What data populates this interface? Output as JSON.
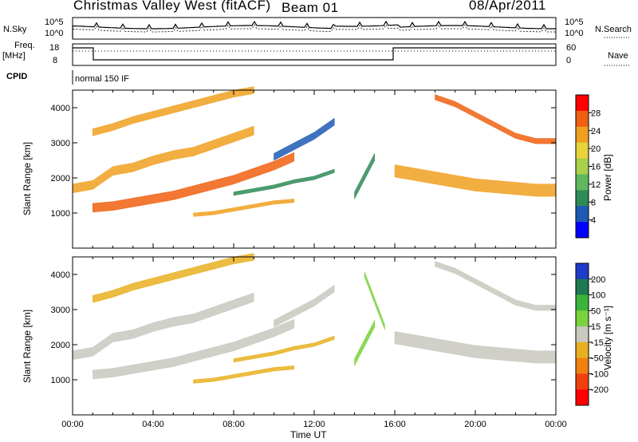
{
  "header": {
    "title": "Christmas Valley West (fitACF)",
    "beam": "Beam 01",
    "date": "08/Apr/2011"
  },
  "panels": {
    "nsky_label": "N.Sky",
    "nsearch_label": "N.Search",
    "noise_left_ticks": [
      "10^5",
      "10^0"
    ],
    "noise_right_ticks": [
      "10^5",
      "10^0"
    ],
    "freq_label_1": "Freq.",
    "freq_label_2": "[MHz]",
    "freq_ticks": [
      "18",
      "8"
    ],
    "nave_label": "Nave",
    "nave_ticks": [
      "60",
      "0"
    ],
    "cpid_label": "CPID",
    "cpid_value": "normal 150 IF"
  },
  "colors": {
    "power_scale": [
      "#0000ff",
      "#1e5ab4",
      "#2e8b57",
      "#5fb85f",
      "#a8d04a",
      "#e8d43a",
      "#f0a020",
      "#f06010",
      "#ff0000"
    ],
    "velocity_scale": [
      "#1e3cc8",
      "#1e7850",
      "#3cb43c",
      "#7ad23c",
      "#c8c8c0",
      "#e8b020",
      "#f08010",
      "#f04010",
      "#ff0000"
    ]
  },
  "chart_data": [
    {
      "type": "heatmap",
      "title": "Power",
      "ylabel": "Slant Range [km]",
      "xlabel": "Time UT",
      "x_ticks": [
        "00:00",
        "04:00",
        "08:00",
        "12:00",
        "16:00",
        "20:00",
        "00:00"
      ],
      "y_ticks": [
        "1000",
        "2000",
        "3000",
        "4000"
      ],
      "ylim": [
        0,
        4500
      ],
      "xlim_hours": [
        0,
        24
      ],
      "colorbar_label": "Power [dB]",
      "colorbar_ticks": [
        "28",
        "24",
        "20",
        "16",
        "12",
        "8",
        "4"
      ],
      "colorbar_range": [
        0,
        32
      ],
      "bands": [
        {
          "t": [
            0,
            1,
            2,
            3,
            4,
            5,
            6,
            7,
            8,
            9
          ],
          "r": [
            1700,
            1800,
            2200,
            2300,
            2500,
            2650,
            2750,
            2950,
            3150,
            3350
          ],
          "width": 250,
          "value": 24
        },
        {
          "t": [
            1,
            2,
            3,
            4,
            5,
            6,
            7,
            8,
            9,
            10,
            11
          ],
          "r": [
            1150,
            1200,
            1300,
            1400,
            1500,
            1650,
            1800,
            1950,
            2150,
            2350,
            2600
          ],
          "width": 250,
          "value": 26
        },
        {
          "t": [
            1,
            2,
            3,
            4,
            5,
            6,
            7,
            8,
            9
          ],
          "r": [
            3300,
            3450,
            3650,
            3800,
            3950,
            4100,
            4250,
            4400,
            4500
          ],
          "width": 200,
          "value": 22
        },
        {
          "t": [
            6,
            7,
            8,
            9,
            10,
            11
          ],
          "r": [
            950,
            1000,
            1100,
            1200,
            1300,
            1350
          ],
          "width": 100,
          "value": 24
        },
        {
          "t": [
            8,
            9,
            10,
            11,
            12,
            13
          ],
          "r": [
            1550,
            1650,
            1750,
            1900,
            2000,
            2200
          ],
          "width": 100,
          "value": 10
        },
        {
          "t": [
            10,
            11,
            12,
            13
          ],
          "r": [
            2600,
            2900,
            3200,
            3600
          ],
          "width": 200,
          "value": 6
        },
        {
          "t": [
            14,
            15
          ],
          "r": [
            1500,
            2600
          ],
          "width": 200,
          "value": 10
        },
        {
          "t": [
            16,
            17,
            18,
            19,
            20,
            21,
            22,
            23,
            24
          ],
          "r": [
            2200,
            2100,
            2000,
            1900,
            1800,
            1750,
            1700,
            1650,
            1650
          ],
          "width": 350,
          "value": 24
        },
        {
          "t": [
            18,
            19,
            20,
            21,
            22,
            23,
            24
          ],
          "r": [
            4300,
            4100,
            3800,
            3500,
            3200,
            3050,
            3050
          ],
          "width": 150,
          "value": 26
        }
      ]
    },
    {
      "type": "heatmap",
      "title": "Velocity",
      "ylabel": "Slant Range [km]",
      "xlabel": "Time UT",
      "x_ticks": [
        "00:00",
        "04:00",
        "08:00",
        "12:00",
        "16:00",
        "20:00",
        "00:00"
      ],
      "y_ticks": [
        "1000",
        "2000",
        "3000",
        "4000"
      ],
      "ylim": [
        0,
        4500
      ],
      "xlim_hours": [
        0,
        24
      ],
      "colorbar_label": "Velocity [m s⁻¹]",
      "colorbar_ticks": [
        "200",
        "100",
        "50",
        "15",
        "-15",
        "-50",
        "-100",
        "-200"
      ],
      "colorbar_range": [
        -250,
        250
      ],
      "bands": [
        {
          "t": [
            0,
            1,
            2,
            3,
            4,
            5,
            6,
            7,
            8,
            9
          ],
          "r": [
            1700,
            1800,
            2200,
            2300,
            2500,
            2650,
            2750,
            2950,
            3150,
            3350
          ],
          "width": 250,
          "value": 0
        },
        {
          "t": [
            1,
            2,
            3,
            4,
            5,
            6,
            7,
            8,
            9,
            10,
            11
          ],
          "r": [
            1150,
            1200,
            1300,
            1400,
            1500,
            1650,
            1800,
            1950,
            2150,
            2350,
            2600
          ],
          "width": 250,
          "value": 0
        },
        {
          "t": [
            1,
            2,
            3,
            4,
            5,
            6,
            7,
            8,
            9
          ],
          "r": [
            3300,
            3450,
            3650,
            3800,
            3950,
            4100,
            4250,
            4400,
            4500
          ],
          "width": 200,
          "value": -30
        },
        {
          "t": [
            6,
            7,
            8,
            9,
            10,
            11
          ],
          "r": [
            950,
            1000,
            1100,
            1200,
            1300,
            1350
          ],
          "width": 100,
          "value": -45
        },
        {
          "t": [
            8,
            9,
            10,
            11,
            12,
            13
          ],
          "r": [
            1550,
            1650,
            1750,
            1900,
            2000,
            2200
          ],
          "width": 100,
          "value": -45
        },
        {
          "t": [
            10,
            11,
            12,
            13
          ],
          "r": [
            2600,
            2900,
            3200,
            3600
          ],
          "width": 200,
          "value": 0
        },
        {
          "t": [
            14,
            15
          ],
          "r": [
            1500,
            2600
          ],
          "width": 200,
          "value": 40
        },
        {
          "t": [
            14.5,
            15.5
          ],
          "r": [
            4000,
            2500
          ],
          "width": 150,
          "value": 40
        },
        {
          "t": [
            16,
            17,
            18,
            19,
            20,
            21,
            22,
            23,
            24
          ],
          "r": [
            2200,
            2100,
            2000,
            1900,
            1800,
            1750,
            1700,
            1650,
            1650
          ],
          "width": 350,
          "value": 0
        },
        {
          "t": [
            18,
            19,
            20,
            21,
            22,
            23,
            24
          ],
          "r": [
            4300,
            4100,
            3800,
            3500,
            3200,
            3050,
            3050
          ],
          "width": 150,
          "value": 0
        }
      ]
    }
  ]
}
